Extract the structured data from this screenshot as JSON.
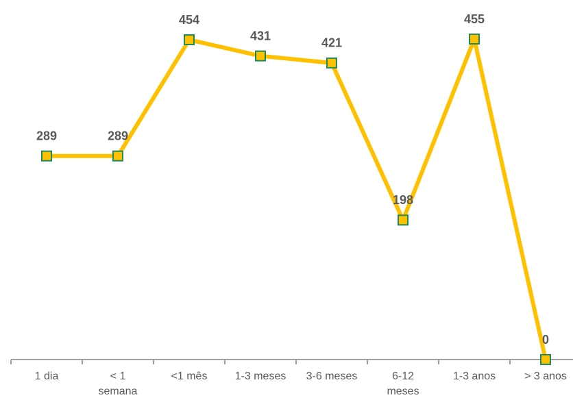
{
  "chart_data": {
    "type": "line",
    "categories": [
      "1 dia",
      "< 1\nsemana",
      "<1 mês",
      "1-3 meses",
      "3-6 meses",
      "6-12\nmeses",
      "1-3 anos",
      "> 3 anos"
    ],
    "series": [
      {
        "color": "#ffc000",
        "values": [
          289,
          289,
          454,
          431,
          421,
          198,
          455,
          0
        ]
      }
    ],
    "ylim": [
      0,
      455
    ]
  }
}
